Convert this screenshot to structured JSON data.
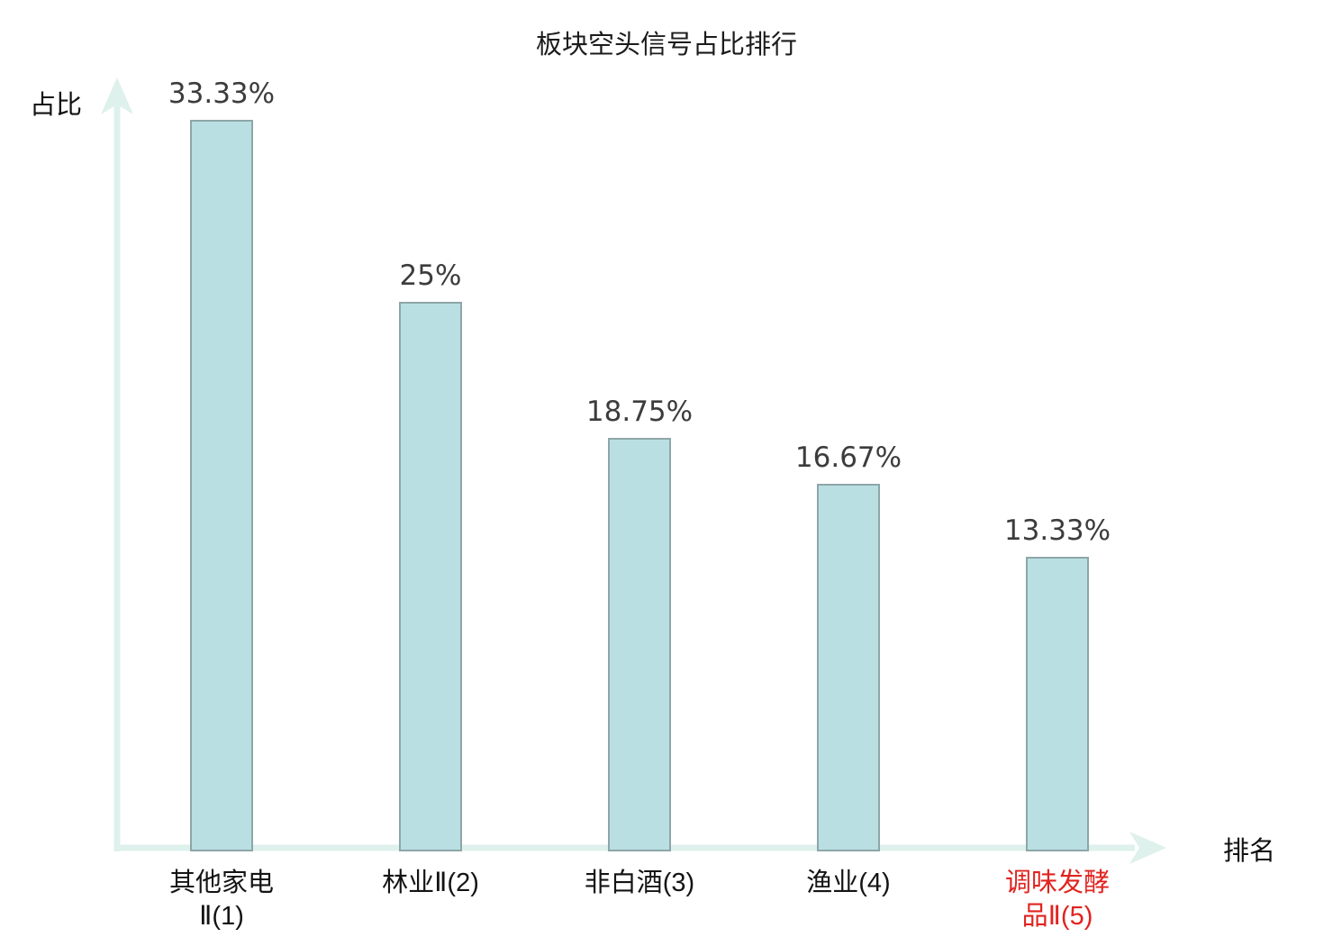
{
  "chart_data": {
    "type": "bar",
    "title": "板块空头信号占比排行",
    "xlabel": "排名",
    "ylabel": "占比",
    "categories": [
      "其他家电Ⅱ(1)",
      "林业Ⅱ(2)",
      "非白酒(3)",
      "渔业(4)",
      "调味发酵品Ⅱ(5)"
    ],
    "category_display": [
      "其他家电\nⅡ(1)",
      "林业Ⅱ(2)",
      "非白酒(3)",
      "渔业(4)",
      "调味发酵\n品Ⅱ(5)"
    ],
    "values": [
      33.33,
      25,
      18.75,
      16.67,
      13.33
    ],
    "value_labels": [
      "33.33%",
      "25%",
      "18.75%",
      "16.67%",
      "13.33%"
    ],
    "unit": "%",
    "ylim": [
      0,
      35
    ],
    "grid": false,
    "legend_position": "none",
    "highlight_index": 4,
    "highlight_color": "#e02420",
    "bar_fill": "#b9dfe3",
    "bar_border": "#8ea6a8",
    "axis_color": "#def1ec",
    "value_label_color": "#3c3c3c",
    "text_color": "#141414"
  }
}
